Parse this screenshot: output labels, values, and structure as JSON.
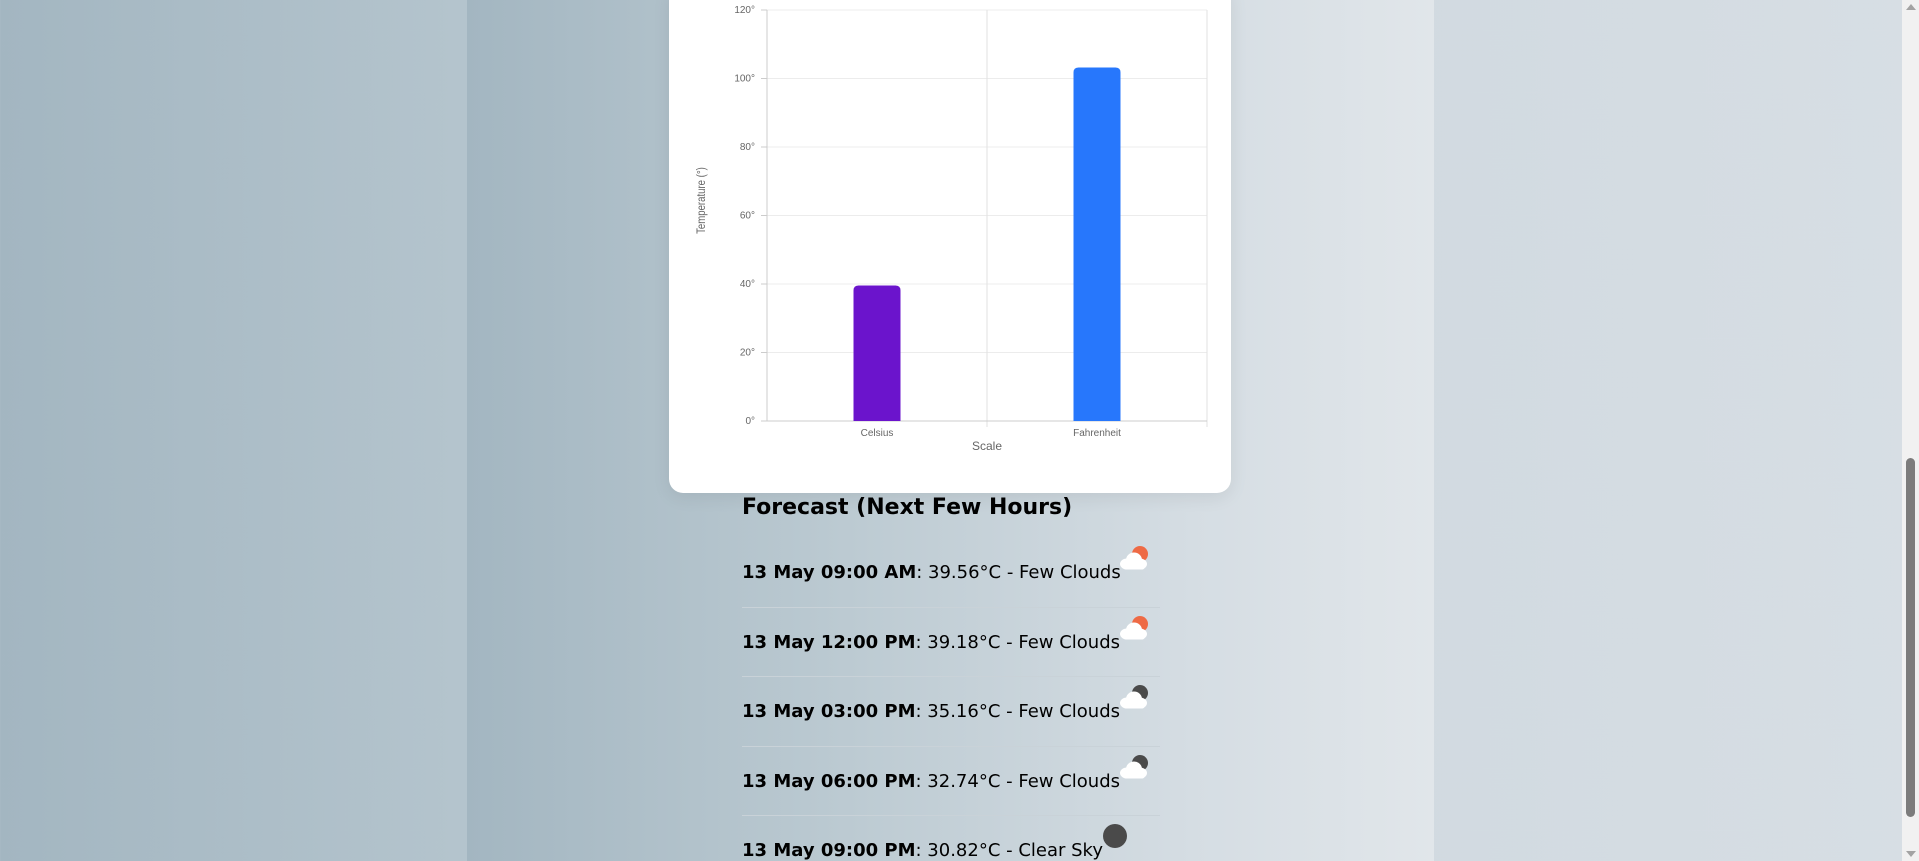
{
  "chart_data": {
    "type": "bar",
    "categories": [
      "Celsius",
      "Fahrenheit"
    ],
    "values": [
      39.56,
      103.21
    ],
    "colors": [
      "#6b14cc",
      "#2777fc"
    ],
    "xlabel": "Scale",
    "ylabel": "Temperature (°)",
    "ylim": [
      0,
      120
    ],
    "yticks": [
      0,
      20,
      40,
      60,
      80,
      100,
      120
    ],
    "ytick_labels": [
      "0°",
      "20°",
      "40°",
      "60°",
      "80°",
      "100°",
      "120°"
    ],
    "grid": true
  },
  "forecast": {
    "title": "Forecast (Next Few Hours)",
    "items": [
      {
        "time": "13 May 09:00 AM",
        "details": ": 39.56°C - Few Clouds",
        "icon": "few-clouds-day-icon"
      },
      {
        "time": "13 May 12:00 PM",
        "details": ": 39.18°C - Few Clouds",
        "icon": "few-clouds-day-icon"
      },
      {
        "time": "13 May 03:00 PM",
        "details": ": 35.16°C - Few Clouds",
        "icon": "few-clouds-night-icon"
      },
      {
        "time": "13 May 06:00 PM",
        "details": ": 32.74°C - Few Clouds",
        "icon": "few-clouds-night-icon"
      },
      {
        "time": "13 May 09:00 PM",
        "details": ": 30.82°C - Clear Sky",
        "icon": "clear-sky-night-icon"
      }
    ]
  },
  "colors": {
    "sun": "#ee6a45",
    "moon": "#4a4a4a",
    "cloud": "#ffffff"
  }
}
